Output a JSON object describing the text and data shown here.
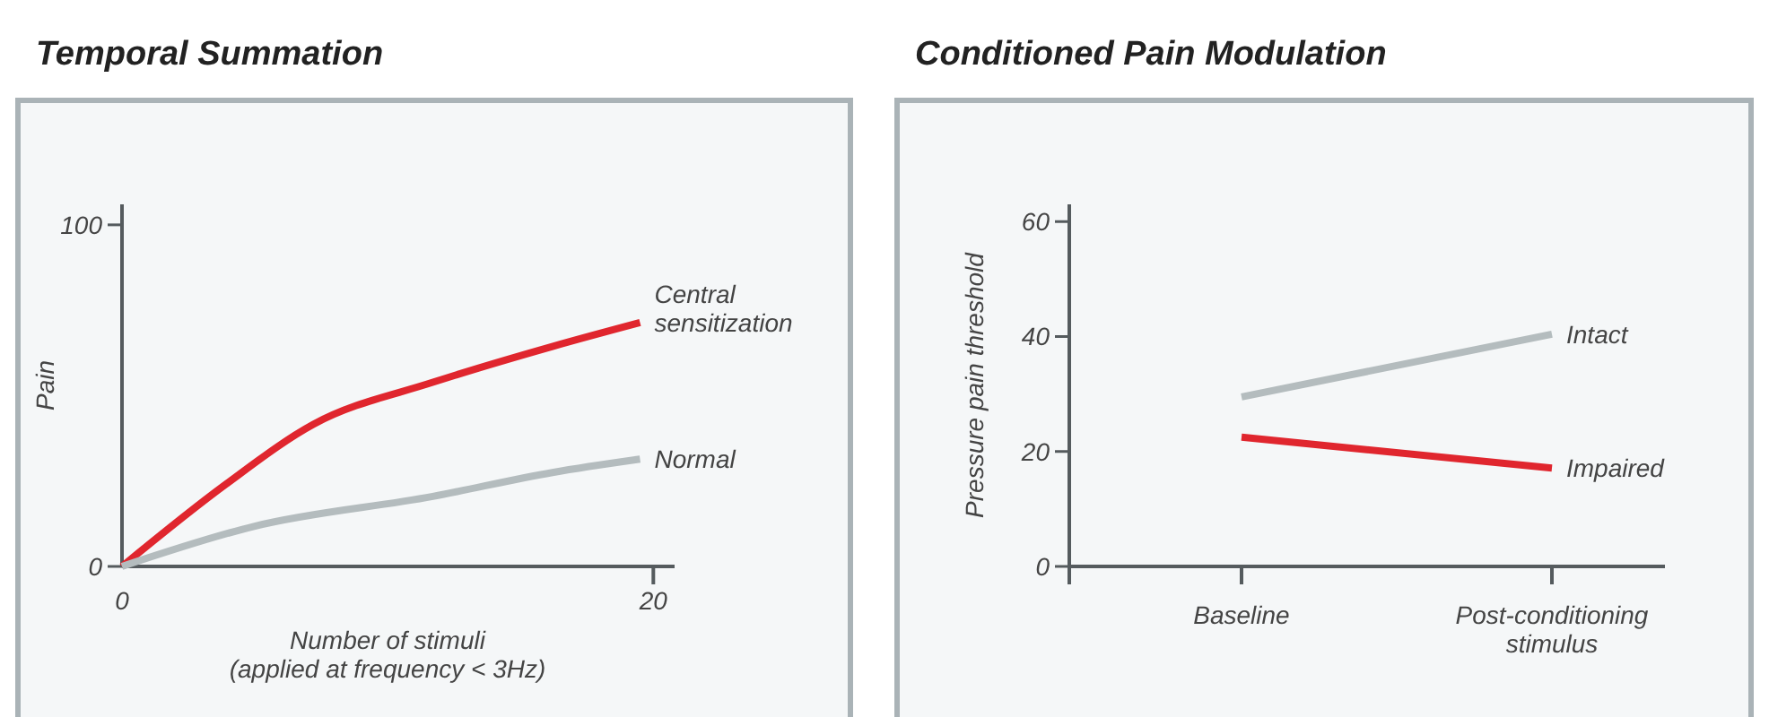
{
  "chart_data": [
    {
      "type": "line",
      "title": "Temporal Summation",
      "xlabel": "Number of stimuli\n(applied at frequency < 3Hz)",
      "ylabel": "Pain",
      "xlim": [
        0,
        20.8
      ],
      "ylim": [
        0,
        106
      ],
      "xticks": [
        0,
        20
      ],
      "yticks": [
        0,
        100
      ],
      "grid": false,
      "marker": "none",
      "line_style": "solid",
      "series": [
        {
          "name": "Central\nsensitization",
          "color": "#e0262e",
          "x": [
            0,
            3.9,
            7.2,
            11.7,
            16.2,
            19.5
          ],
          "values": [
            0,
            24,
            41.6,
            53.9,
            64.4,
            71.4
          ]
        },
        {
          "name": "Normal",
          "color": "#b4bcbe",
          "x": [
            0,
            5,
            11.7,
            16.2,
            19.5
          ],
          "values": [
            0,
            11.8,
            20.5,
            27.5,
            31.4
          ]
        }
      ]
    },
    {
      "type": "line",
      "title": "Conditioned Pain Modulation",
      "ylabel": "Pressure pain threshold",
      "categories": [
        "Baseline",
        "Post-conditioning\nstimulus"
      ],
      "ylim": [
        0,
        63
      ],
      "yticks": [
        0,
        20,
        40,
        60
      ],
      "grid": false,
      "marker": "none",
      "line_style": "solid",
      "series": [
        {
          "name": "Intact",
          "color": "#b4bcbe",
          "values": [
            29.5,
            40.4
          ]
        },
        {
          "name": "Impaired",
          "color": "#e0262e",
          "values": [
            22.5,
            17.1
          ]
        }
      ]
    }
  ]
}
